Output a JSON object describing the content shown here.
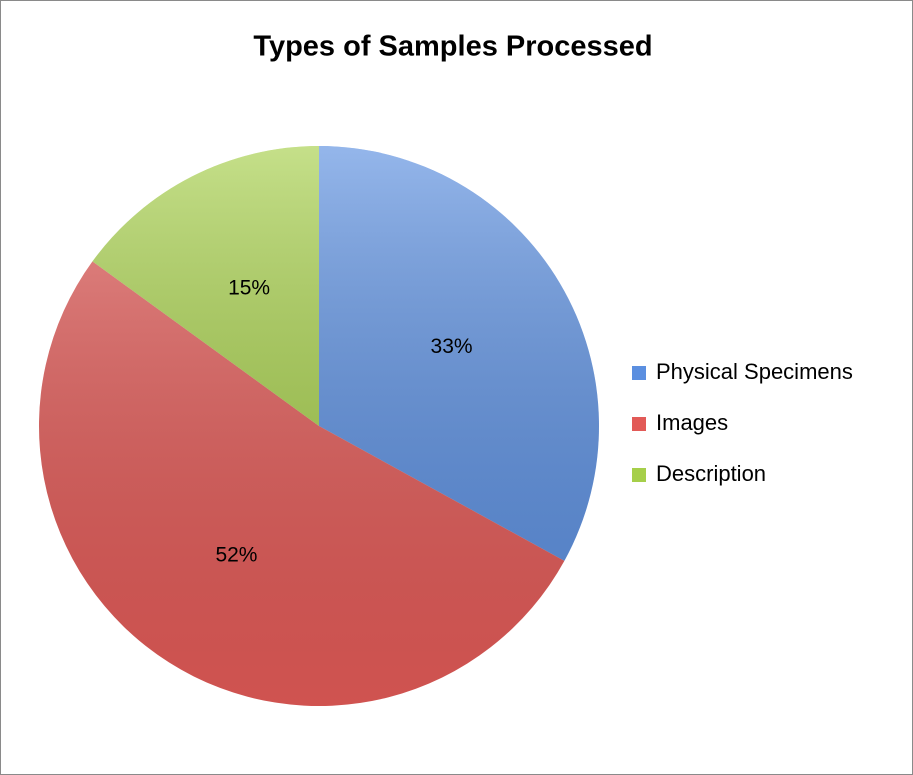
{
  "chart_data": {
    "type": "pie",
    "title": "Types of Samples Processed",
    "categories": [
      "Physical Specimens",
      "Images",
      "Description"
    ],
    "values": [
      33,
      52,
      15
    ],
    "value_labels": [
      "33%",
      "52%",
      "15%"
    ],
    "colors": [
      "#5b8fe0",
      "#e25a57",
      "#a6cf4a"
    ],
    "legend": "right"
  }
}
